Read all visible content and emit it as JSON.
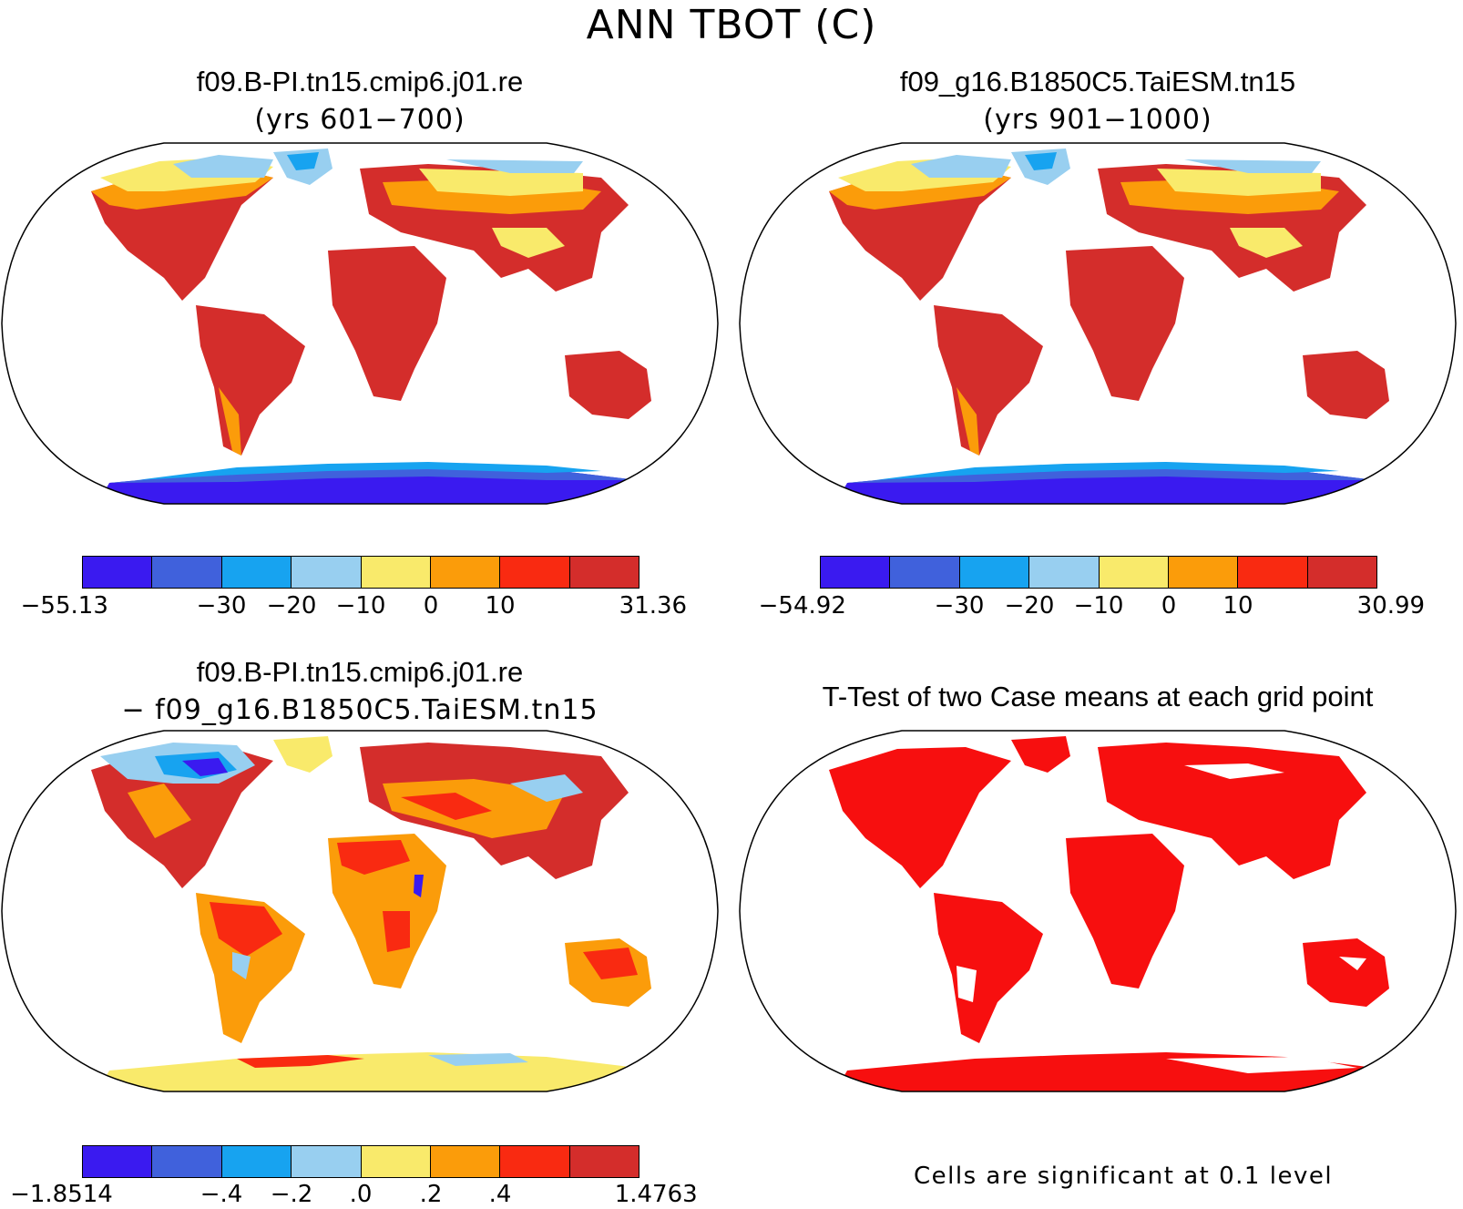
{
  "main_title": "ANN TBOT (C)",
  "panels": {
    "top_left": {
      "title": "f09.B-PI.tn15.cmip6.j01.re",
      "subtitle": "(yrs 601−700)"
    },
    "top_right": {
      "title": "f09_g16.B1850C5.TaiESM.tn15",
      "subtitle": "(yrs 901−1000)"
    },
    "bottom_left": {
      "title": "f09.B-PI.tn15.cmip6.j01.re",
      "subtitle": "− f09_g16.B1850C5.TaiESM.tn15"
    },
    "bottom_right": {
      "title": "T-Test of two Case means at each grid point",
      "note": "Cells are significant at 0.1 level"
    }
  },
  "colorbar_colors": [
    "#3a1af0",
    "#4061dc",
    "#17a3f0",
    "#98cff0",
    "#f9ea6b",
    "#fb9c0a",
    "#f92a11",
    "#d42d2b"
  ],
  "colorbars": {
    "top_left": {
      "labels": [
        "−55.13",
        "−30",
        "−20",
        "−10",
        "0",
        "10",
        "31.36"
      ]
    },
    "top_right": {
      "labels": [
        "−54.92",
        "−30",
        "−20",
        "−10",
        "0",
        "10",
        "30.99"
      ]
    },
    "bottom_left": {
      "labels": [
        "−1.8514",
        "−.4",
        "−.2",
        ".0",
        ".2",
        ".4",
        "1.4763"
      ]
    }
  }
}
